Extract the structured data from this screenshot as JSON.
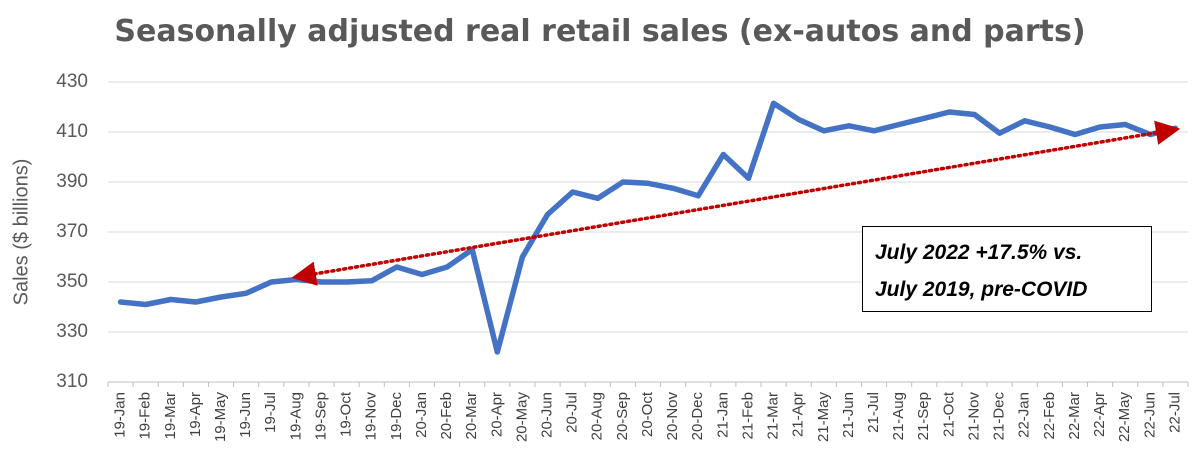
{
  "chart_data": {
    "type": "line",
    "title": "Seasonally adjusted real retail sales (ex-autos and parts)",
    "ylabel": "Sales ($ billions)",
    "xlabel": "",
    "ylim": [
      310,
      430
    ],
    "yticks": [
      310,
      330,
      350,
      370,
      390,
      410,
      430
    ],
    "grid": true,
    "categories": [
      "19-Jan",
      "19-Feb",
      "19-Mar",
      "19-Apr",
      "19-May",
      "19-Jun",
      "19-Jul",
      "19-Aug",
      "19-Sep",
      "19-Oct",
      "19-Nov",
      "19-Dec",
      "20-Jan",
      "20-Feb",
      "20-Mar",
      "20-Apr",
      "20-May",
      "20-Jun",
      "20-Jul",
      "20-Aug",
      "20-Sep",
      "20-Oct",
      "20-Nov",
      "20-Dec",
      "21-Jan",
      "21-Feb",
      "21-Mar",
      "21-Apr",
      "21-May",
      "21-Jun",
      "21-Jul",
      "21-Aug",
      "21-Sep",
      "21-Oct",
      "21-Nov",
      "21-Dec",
      "22-Jan",
      "22-Feb",
      "22-Mar",
      "22-Apr",
      "22-May",
      "22-Jun",
      "22-Jul"
    ],
    "series": [
      {
        "color": "#4472C4",
        "values": [
          342,
          341,
          343,
          342,
          344,
          345.5,
          350,
          351,
          350,
          350,
          350.5,
          356,
          353,
          356,
          363,
          322,
          360,
          377,
          386,
          383.5,
          390,
          389.5,
          387.5,
          384.5,
          401,
          391.5,
          421.5,
          415,
          410.5,
          412.5,
          410.5,
          413,
          415.5,
          418,
          417,
          409.5,
          414.5,
          412,
          409,
          412,
          413,
          409,
          411.5
        ]
      }
    ],
    "trend_arrow": {
      "color": "#C00000",
      "from": {
        "x": "19-Aug",
        "y": 352
      },
      "to": {
        "x": "22-Jul",
        "y": 411
      }
    },
    "annotation": {
      "lines": [
        "July 2022 +17.5% vs.",
        "July 2019, pre-COVID"
      ]
    }
  }
}
